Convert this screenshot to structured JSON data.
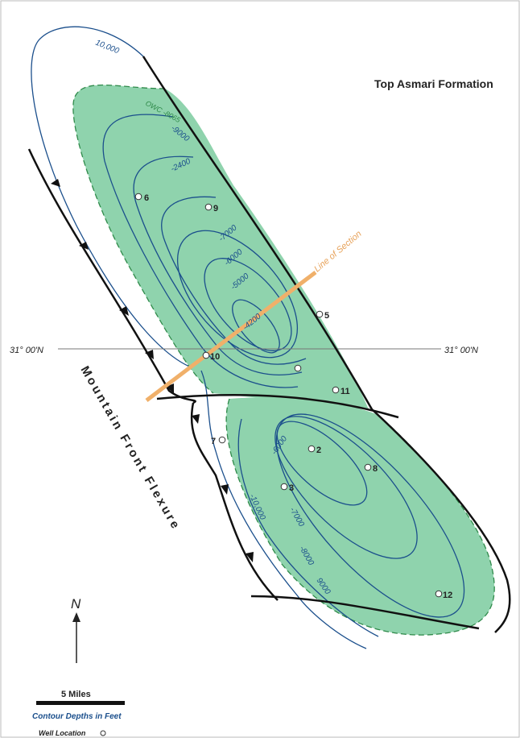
{
  "map": {
    "title": "Top Asmari Formation",
    "latitude_label": "31° 00'N",
    "section_label": "Line of Section",
    "flexure_label": "Mountain Front Flexure",
    "north_label": "N",
    "scale_label": "5 Miles",
    "contour_note": "Contour Depths in Feet",
    "legend_well_label": "Well Location",
    "owc_label": "OWC -8065",
    "contours": {
      "c10000_north": "10,000",
      "c9000_north": "-9000",
      "c2400": "-2400",
      "c7000_north": "-7000",
      "c6000_north": "-6000",
      "c5000": "-5000",
      "c4200": "-4200",
      "c10000_south": "-10,000",
      "c6000_south": "-6000",
      "c7000_south": "-7000",
      "c8000_south": "-8000",
      "c9000_south": "9000"
    },
    "wells": [
      {
        "id": "6",
        "label": "6"
      },
      {
        "id": "9",
        "label": "9"
      },
      {
        "id": "5",
        "label": "5"
      },
      {
        "id": "10",
        "label": "10"
      },
      {
        "id": "unnamed",
        "label": ""
      },
      {
        "id": "11",
        "label": "11"
      },
      {
        "id": "7",
        "label": "7"
      },
      {
        "id": "2",
        "label": "2"
      },
      {
        "id": "8",
        "label": "8"
      },
      {
        "id": "3",
        "label": "3"
      },
      {
        "id": "12",
        "label": "12"
      }
    ],
    "colors": {
      "oil_fill": "#8fd3ad",
      "contour": "#1b4f8c",
      "owc": "#2f8a4a",
      "section_line": "#f0b06a",
      "fault": "#111111"
    }
  }
}
